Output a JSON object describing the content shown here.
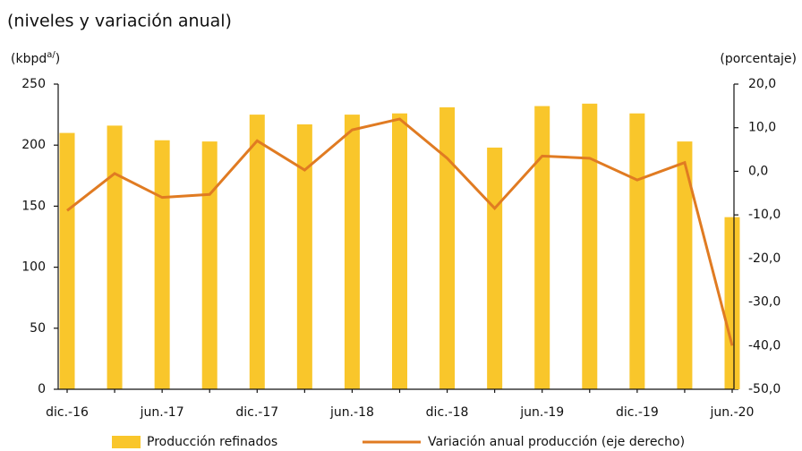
{
  "chart_data": {
    "type": "bar_line",
    "title": "(niveles y variación anual)",
    "y_label": [
      "(kbpd",
      "a/",
      ")"
    ],
    "y2_label": "(porcentaje)",
    "categories": [
      "dic.-16",
      null,
      "jun.-17",
      null,
      "dic.-17",
      null,
      "jun.-18",
      null,
      "dic.-18",
      null,
      "jun.-19",
      null,
      "dic.-19",
      null,
      "jun.-20"
    ],
    "series": [
      {
        "name": "Producción refinados",
        "color": "#f9c62b",
        "values": [
          210,
          216,
          204,
          203,
          225,
          217,
          225,
          226,
          231,
          198,
          232,
          234,
          226,
          203,
          141
        ]
      },
      {
        "name": "Variación anual producción  (eje derecho)",
        "color": "#e07b22",
        "axis": "y2",
        "values": [
          -9,
          -0.5,
          -6,
          -5.3,
          7,
          0.3,
          9.5,
          12,
          3,
          -8.5,
          3.5,
          3,
          -2,
          2,
          -40
        ]
      }
    ],
    "ylim": [
      0,
      250
    ],
    "yticks": [
      0,
      50,
      100,
      150,
      200,
      250
    ],
    "y2lim": [
      -50,
      20
    ],
    "y2ticks": [
      {
        "value": -50,
        "label": "-50,0"
      },
      {
        "value": -40,
        "label": "-40,0"
      },
      {
        "value": -30,
        "label": "-30,0"
      },
      {
        "value": -20,
        "label": "-20,0"
      },
      {
        "value": -10,
        "label": "-10,0"
      },
      {
        "value": 0,
        "label": "0,0"
      },
      {
        "value": 10,
        "label": "10,0"
      },
      {
        "value": 20,
        "label": "20,0"
      }
    ]
  }
}
